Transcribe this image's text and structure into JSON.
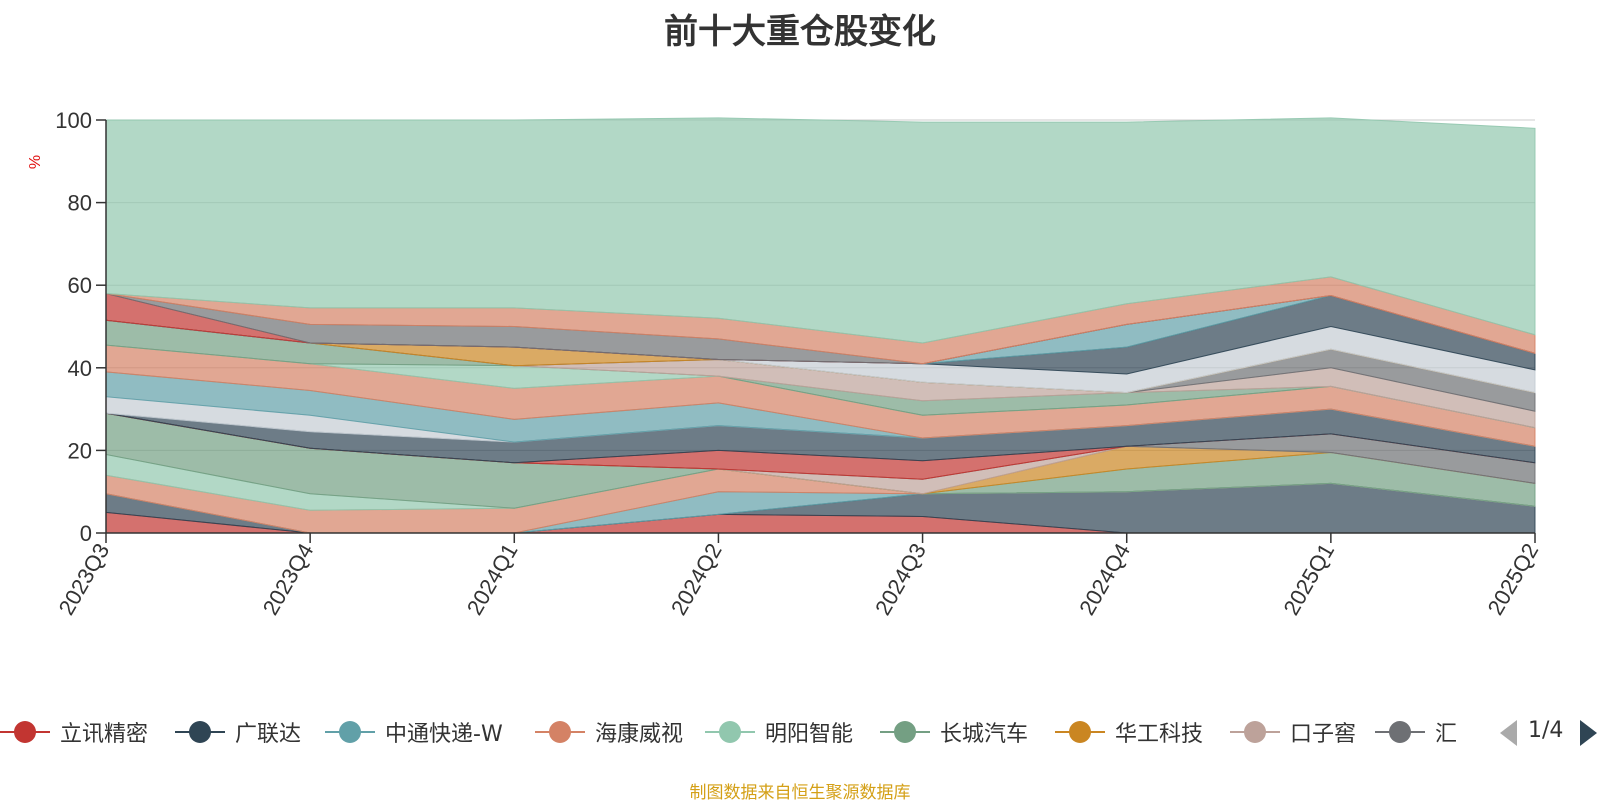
{
  "chart_data": {
    "type": "area",
    "stacked": true,
    "title": "前十大重仓股变化",
    "ylabel": "%",
    "ylim": [
      0,
      100
    ],
    "yticks": [
      0,
      20,
      40,
      60,
      80,
      100
    ],
    "categories": [
      "2023Q3",
      "2023Q4",
      "2024Q1",
      "2024Q2",
      "2024Q3",
      "2024Q4",
      "2025Q1",
      "2025Q2"
    ],
    "series": [
      {
        "name": "立讯精密",
        "color": "#c23531",
        "values": [
          5,
          0,
          0,
          4.5,
          4,
          0,
          0,
          0
        ]
      },
      {
        "name": "广联达",
        "color": "#2f4554",
        "values": [
          4.5,
          0,
          0,
          0,
          5.5,
          10,
          12,
          6.5
        ]
      },
      {
        "name": "中通快递-W",
        "color": "#61a0a8",
        "values": [
          0,
          0,
          0,
          5.5,
          0,
          0,
          0,
          0
        ]
      },
      {
        "name": "海康威视",
        "color": "#d48265",
        "values": [
          4.5,
          5.5,
          6,
          5.5,
          0,
          0,
          0,
          0
        ]
      },
      {
        "name": "明阳智能",
        "color": "#91c7ae",
        "values": [
          5,
          4,
          0,
          0,
          0,
          0,
          0,
          0
        ]
      },
      {
        "name": "长城汽车",
        "color": "#749f83",
        "values": [
          10,
          11,
          11,
          0,
          0,
          5.5,
          7.5,
          5.5
        ]
      },
      {
        "name": "华工科技",
        "color": "#ca8622",
        "values": [
          0,
          0,
          0,
          0,
          0,
          5.5,
          0,
          0
        ]
      },
      {
        "name": "口子窖",
        "color": "#bda29a",
        "values": [
          0,
          0,
          0,
          0,
          3.5,
          0,
          0,
          0
        ]
      },
      {
        "name": "汇",
        "color": "#6e7074",
        "values": [
          0,
          0,
          0,
          0,
          0,
          0,
          4.5,
          5
        ]
      },
      {
        "name": "",
        "color": "#c23531",
        "values": [
          0,
          0,
          0,
          4.5,
          4.5,
          0,
          0,
          0
        ]
      },
      {
        "name": "",
        "color": "#2f4554",
        "values": [
          0,
          4,
          5,
          6,
          5.5,
          5,
          6,
          4
        ]
      },
      {
        "name": "",
        "color": "#c4ccd3",
        "values": [
          4,
          4,
          0,
          0,
          0,
          0,
          0,
          0
        ]
      },
      {
        "name": "",
        "color": "#61a0a8",
        "values": [
          6,
          6,
          5.5,
          5.5,
          0,
          0,
          0,
          0
        ]
      },
      {
        "name": "",
        "color": "#d48265",
        "values": [
          6.5,
          6.5,
          7.5,
          6.5,
          5.5,
          5,
          5.5,
          4.5
        ]
      },
      {
        "name": "",
        "color": "#91c7ae",
        "values": [
          0,
          0,
          5.5,
          0,
          0,
          0,
          0,
          0
        ]
      },
      {
        "name": "",
        "color": "#749f83",
        "values": [
          6,
          5,
          0,
          0,
          3.5,
          3,
          0,
          0
        ]
      },
      {
        "name": "",
        "color": "#bda29a",
        "values": [
          0,
          0,
          0,
          4,
          4.5,
          0,
          4.5,
          4
        ]
      },
      {
        "name": "",
        "color": "#6e7074",
        "values": [
          0,
          0,
          0,
          0,
          0,
          0,
          4.5,
          4.5
        ]
      },
      {
        "name": "",
        "color": "#ca8622",
        "values": [
          0,
          0,
          4.5,
          0,
          0,
          0,
          0,
          0
        ]
      },
      {
        "name": "",
        "color": "#c4ccd3",
        "values": [
          0,
          0,
          0,
          0,
          4.5,
          4.5,
          5.5,
          5.5
        ]
      },
      {
        "name": "",
        "color": "#2f4554",
        "values": [
          0,
          0,
          0,
          0,
          0,
          6.5,
          7.5,
          4
        ]
      },
      {
        "name": "",
        "color": "#61a0a8",
        "values": [
          0,
          0,
          0,
          0,
          0,
          5.5,
          0,
          0
        ]
      },
      {
        "name": "",
        "color": "#c23531",
        "values": [
          6.5,
          0,
          0,
          0,
          0,
          0,
          0,
          0
        ]
      },
      {
        "name": "",
        "color": "#6e7074",
        "values": [
          0,
          4.5,
          5,
          5,
          0,
          0,
          0,
          0
        ]
      },
      {
        "name": "",
        "color": "#d48265",
        "values": [
          0,
          4,
          4.5,
          5,
          5,
          5,
          4.5,
          4.5
        ]
      },
      {
        "name": "",
        "color": "#91c7ae",
        "values": [
          42,
          45.5,
          45.5,
          48.5,
          53.5,
          44,
          38.5,
          50
        ]
      }
    ]
  },
  "legend": {
    "items": [
      {
        "label": "立讯精密",
        "color": "#c23531"
      },
      {
        "label": "广联达",
        "color": "#2f4554"
      },
      {
        "label": "中通快递-W",
        "color": "#61a0a8"
      },
      {
        "label": "海康威视",
        "color": "#d48265"
      },
      {
        "label": "明阳智能",
        "color": "#91c7ae"
      },
      {
        "label": "长城汽车",
        "color": "#749f83"
      },
      {
        "label": "华工科技",
        "color": "#ca8622"
      },
      {
        "label": "口子窖",
        "color": "#bda29a"
      },
      {
        "label": "汇",
        "color": "#6e7074"
      }
    ],
    "page_text": "1/4",
    "prev_icon": "triangle-left-icon",
    "next_icon": "triangle-right-icon"
  },
  "source_note": "制图数据来自恒生聚源数据库"
}
